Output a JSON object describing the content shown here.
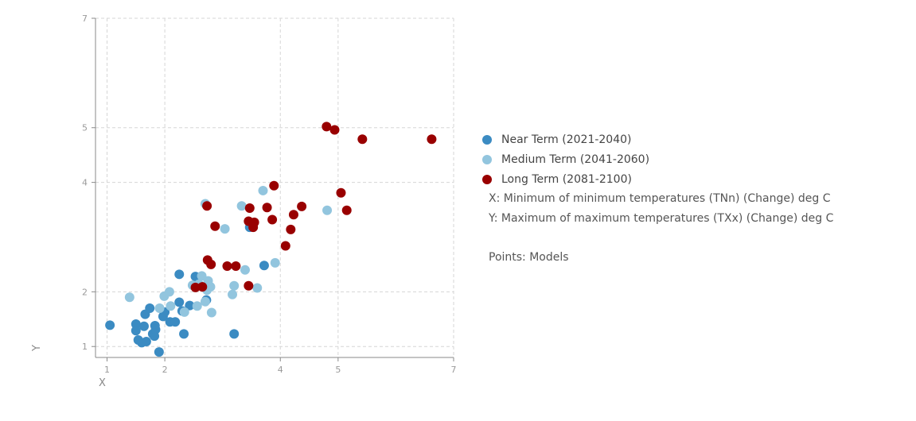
{
  "chart_data": {
    "type": "scatter",
    "xlabel": "X",
    "ylabel": "Y",
    "xlim": [
      0.8,
      7
    ],
    "ylim": [
      0.8,
      7
    ],
    "x_ticks": [
      1,
      2,
      4,
      5,
      7
    ],
    "y_ticks": [
      1,
      2,
      4,
      5,
      7
    ],
    "grid": true,
    "legend_position": "right",
    "series": [
      {
        "name": "Near Term (2021-2040)",
        "color": "#3b8bc2",
        "points": [
          [
            1.05,
            1.39
          ],
          [
            1.5,
            1.41
          ],
          [
            1.5,
            1.29
          ],
          [
            1.54,
            1.12
          ],
          [
            1.6,
            1.07
          ],
          [
            1.64,
            1.37
          ],
          [
            1.66,
            1.59
          ],
          [
            1.68,
            1.09
          ],
          [
            1.74,
            1.7
          ],
          [
            1.79,
            1.23
          ],
          [
            1.82,
            1.19
          ],
          [
            1.83,
            1.38
          ],
          [
            1.84,
            1.31
          ],
          [
            1.9,
            0.9
          ],
          [
            1.97,
            1.55
          ],
          [
            2.0,
            1.63
          ],
          [
            2.09,
            1.45
          ],
          [
            2.18,
            1.45
          ],
          [
            2.25,
            1.81
          ],
          [
            2.25,
            2.32
          ],
          [
            2.3,
            1.65
          ],
          [
            2.33,
            1.23
          ],
          [
            2.43,
            1.75
          ],
          [
            2.53,
            2.28
          ],
          [
            2.72,
            1.85
          ],
          [
            3.2,
            1.23
          ],
          [
            3.47,
            3.18
          ],
          [
            3.72,
            2.48
          ]
        ]
      },
      {
        "name": "Medium Term (2041-2060)",
        "color": "#92c5de",
        "points": [
          [
            1.39,
            1.9
          ],
          [
            1.91,
            1.7
          ],
          [
            1.99,
            1.92
          ],
          [
            2.08,
            2.0
          ],
          [
            2.1,
            1.74
          ],
          [
            2.34,
            1.63
          ],
          [
            2.48,
            2.12
          ],
          [
            2.56,
            1.74
          ],
          [
            2.59,
            2.14
          ],
          [
            2.64,
            2.29
          ],
          [
            2.7,
            1.82
          ],
          [
            2.73,
            2.03
          ],
          [
            2.75,
            2.2
          ],
          [
            2.79,
            2.09
          ],
          [
            2.81,
            1.62
          ],
          [
            2.7,
            3.61
          ],
          [
            3.04,
            3.15
          ],
          [
            3.17,
            1.95
          ],
          [
            3.2,
            2.11
          ],
          [
            3.33,
            3.57
          ],
          [
            3.39,
            2.4
          ],
          [
            3.6,
            2.07
          ],
          [
            3.7,
            3.85
          ],
          [
            3.91,
            2.53
          ],
          [
            4.81,
            3.49
          ]
        ]
      },
      {
        "name": "Long Term (2081-2100)",
        "color": "#990000",
        "points": [
          [
            2.53,
            2.08
          ],
          [
            2.65,
            2.09
          ],
          [
            2.74,
            2.58
          ],
          [
            2.8,
            2.5
          ],
          [
            2.87,
            3.2
          ],
          [
            2.73,
            3.57
          ],
          [
            3.08,
            2.47
          ],
          [
            3.23,
            2.47
          ],
          [
            3.45,
            2.11
          ],
          [
            3.45,
            3.29
          ],
          [
            3.47,
            3.53
          ],
          [
            3.53,
            3.18
          ],
          [
            3.55,
            3.27
          ],
          [
            3.77,
            3.54
          ],
          [
            3.86,
            3.32
          ],
          [
            3.89,
            3.94
          ],
          [
            4.09,
            2.84
          ],
          [
            4.18,
            3.14
          ],
          [
            4.23,
            3.41
          ],
          [
            4.37,
            3.56
          ],
          [
            4.8,
            5.02
          ],
          [
            4.94,
            4.96
          ],
          [
            5.05,
            3.81
          ],
          [
            5.15,
            3.49
          ],
          [
            5.42,
            4.79
          ],
          [
            6.62,
            4.79
          ]
        ]
      }
    ]
  },
  "legend": {
    "notes": {
      "x_desc": "X: Minimum of minimum temperatures (TNn) (Change) deg C",
      "y_desc": "Y: Maximum of maximum temperatures (TXx) (Change) deg C",
      "points_desc": "Points: Models"
    }
  }
}
